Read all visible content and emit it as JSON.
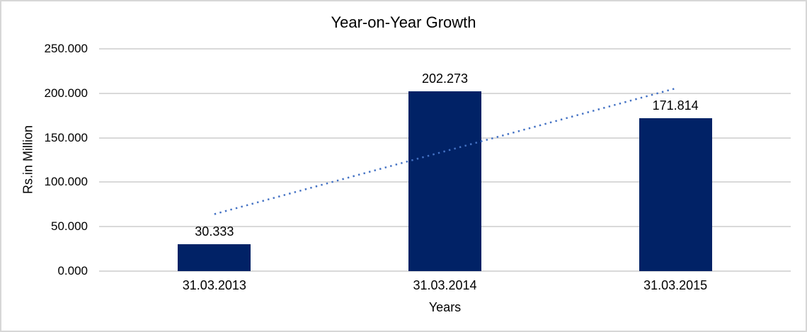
{
  "chart_data": {
    "type": "bar",
    "title": "Year-on-Year Growth",
    "xlabel": "Years",
    "ylabel": "Rs.in Million",
    "categories": [
      "31.03.2013",
      "31.03.2014",
      "31.03.2015"
    ],
    "values": [
      30.333,
      202.273,
      171.814
    ],
    "value_labels": [
      "30.333",
      "202.273",
      "171.814"
    ],
    "ylim": [
      0,
      250
    ],
    "ytick_step": 50,
    "ytick_labels": [
      "0.000",
      "50.000",
      "100.000",
      "150.000",
      "200.000",
      "250.000"
    ],
    "grid": true,
    "legend": "none",
    "colors": {
      "bar": "#012266",
      "trendline": "#4472C4",
      "gridline": "#d9d9d9",
      "axis_line": "#d9d9d9",
      "text": "#000000",
      "frame_border": "#d7d7d7"
    },
    "trendline": {
      "type": "linear",
      "style": "dotted",
      "start_value": 64.1,
      "end_value": 205.5
    }
  }
}
